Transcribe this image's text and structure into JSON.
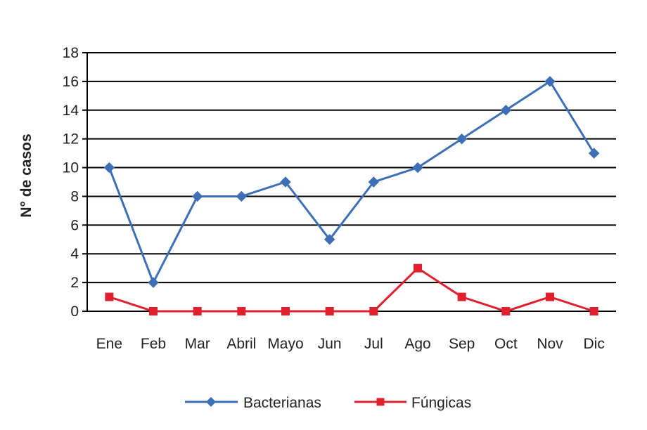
{
  "chart_data": {
    "type": "line",
    "categories": [
      "Ene",
      "Feb",
      "Mar",
      "Abril",
      "Mayo",
      "Jun",
      "Jul",
      "Ago",
      "Sep",
      "Oct",
      "Nov",
      "Dic"
    ],
    "series": [
      {
        "name": "Bacterianas",
        "values": [
          10,
          2,
          8,
          8,
          9,
          5,
          9,
          10,
          12,
          14,
          16,
          11
        ],
        "color": "#3d6fb6",
        "marker": "diamond"
      },
      {
        "name": "Fúngicas",
        "values": [
          1,
          0,
          0,
          0,
          0,
          0,
          0,
          3,
          1,
          0,
          1,
          0
        ],
        "color": "#e0212d",
        "marker": "square"
      }
    ],
    "ylabel": "N° de casos",
    "xlabel": "",
    "ylim": [
      0,
      18
    ],
    "yticks": [
      0,
      2,
      4,
      6,
      8,
      10,
      12,
      14,
      16,
      18
    ],
    "grid": true,
    "legend": "bottom"
  }
}
